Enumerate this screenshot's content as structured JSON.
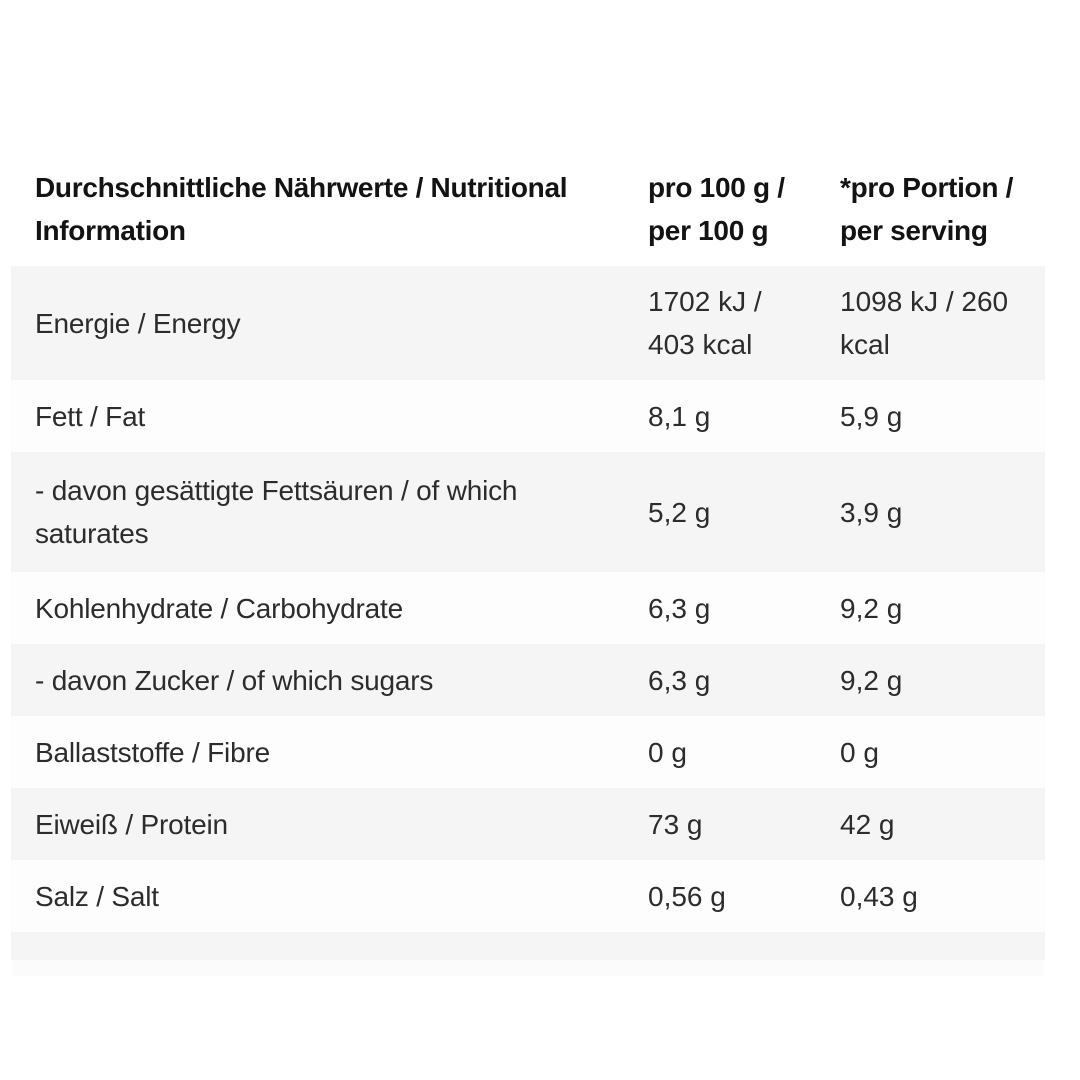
{
  "table": {
    "header": {
      "nutrient": "Durchschnittliche Nährwerte / Nutritional Information",
      "per_100g": "pro 100 g / per 100 g",
      "per_serving": "*pro Portion / per serving"
    },
    "rows": [
      {
        "nutrient": "Energie / Energy",
        "per_100g": "1702 kJ / 403 kcal",
        "per_serving": "1098 kJ / 260 kcal"
      },
      {
        "nutrient": "Fett / Fat",
        "per_100g": "8,1 g",
        "per_serving": "5,9 g"
      },
      {
        "nutrient": "- davon gesättigte Fettsäuren / of which saturates",
        "per_100g": "5,2 g",
        "per_serving": "3,9 g"
      },
      {
        "nutrient": "Kohlenhydrate / Carbohydrate",
        "per_100g": "6,3 g",
        "per_serving": "9,2 g"
      },
      {
        "nutrient": "- davon Zucker / of which sugars",
        "per_100g": "6,3 g",
        "per_serving": "9,2 g"
      },
      {
        "nutrient": "Ballaststoffe / Fibre",
        "per_100g": "0 g",
        "per_serving": "0 g"
      },
      {
        "nutrient": "Eiweiß / Protein",
        "per_100g": "73 g",
        "per_serving": "42 g"
      },
      {
        "nutrient": "Salz / Salt",
        "per_100g": "0,56 g",
        "per_serving": "0,43 g"
      }
    ]
  },
  "colors": {
    "page_bg": "#ffffff",
    "row_stripe": "#f5f5f5",
    "row_light": "#fdfdfd",
    "footer_light": "#fbfbfb",
    "header_text": "#131313",
    "body_text": "#2c2c2c"
  }
}
